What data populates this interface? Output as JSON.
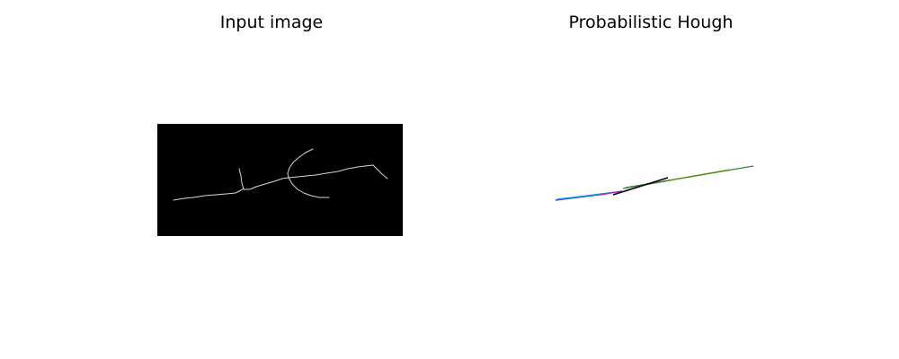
{
  "panels": [
    {
      "title": "Input image",
      "content": "skeleton-edge-image"
    },
    {
      "title": "Probabilistic Hough",
      "content": "detected-line-segments",
      "segment_colors": [
        "#1f3bd1",
        "#17a0d6",
        "#b022d6",
        "#e0b400",
        "#2e8b2e",
        "#777777",
        "#000000"
      ]
    }
  ]
}
